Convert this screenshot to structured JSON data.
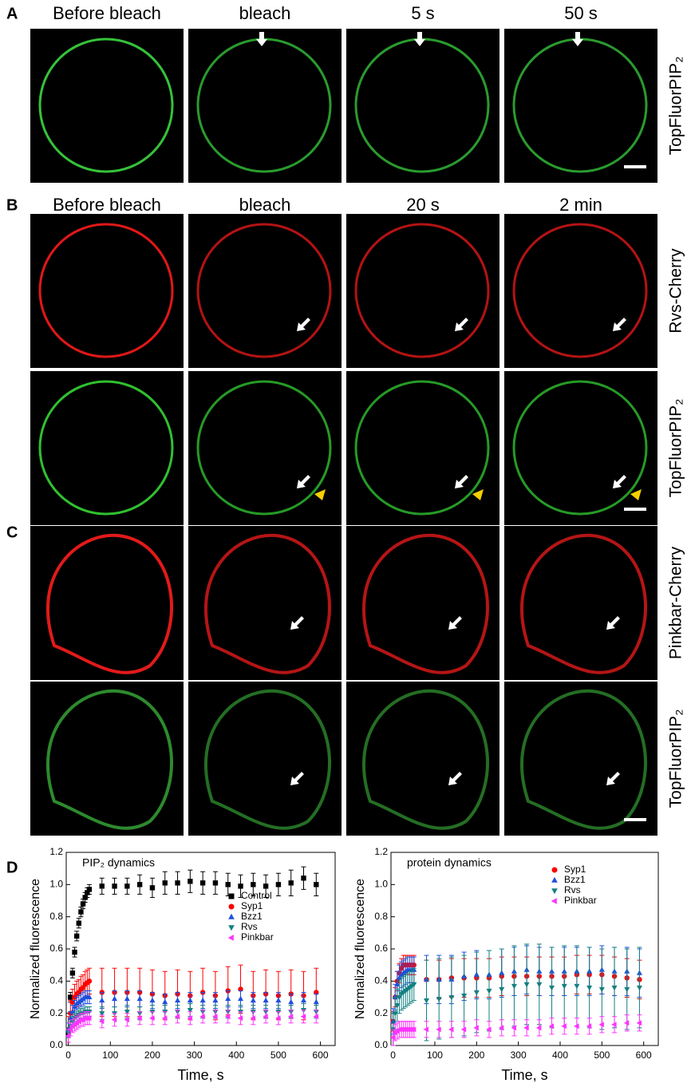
{
  "panels": [
    {
      "label": "A",
      "columns": [
        "Before bleach",
        "bleach",
        "5 s",
        "50 s"
      ],
      "rows": [
        "TopFluorPIP₂"
      ]
    },
    {
      "label": "B",
      "columns": [
        "Before bleach",
        "bleach",
        "20 s",
        "2 min"
      ],
      "rows": [
        "Rvs-Cherry",
        "TopFluorPIP₂"
      ]
    },
    {
      "label": "C",
      "rows": [
        "Pinkbar-Cherry",
        "TopFluorPIP₂"
      ]
    },
    {
      "label": "D"
    }
  ],
  "chart_data": [
    {
      "type": "scatter",
      "title": "PIP₂ dynamics",
      "x_label": "Time, s",
      "y_label": "Normalized fluorescence",
      "xlim": [
        -5,
        635
      ],
      "ylim": [
        0,
        1.2
      ],
      "xticks": [
        0,
        100,
        200,
        300,
        400,
        500,
        600
      ],
      "yticks": [
        {
          "value": 0,
          "label": "0.0"
        },
        0.2,
        0.4,
        0.6,
        0.8,
        {
          "value": 1,
          "label": "1.0"
        },
        1.2
      ],
      "legend": "upper right",
      "x": [
        0,
        5,
        10,
        15,
        20,
        25,
        30,
        35,
        40,
        45,
        50,
        80,
        110,
        140,
        170,
        200,
        230,
        260,
        290,
        320,
        350,
        380,
        410,
        440,
        470,
        500,
        530,
        560,
        590
      ],
      "series": [
        {
          "name": "Control",
          "color": "#000000",
          "marker": "square",
          "values": [
            0.08,
            0.3,
            0.45,
            0.58,
            0.68,
            0.76,
            0.83,
            0.88,
            0.92,
            0.95,
            0.97,
            0.99,
            0.99,
            0.99,
            1.0,
            0.98,
            1.01,
            1.01,
            1.02,
            1.01,
            1.01,
            1.0,
            0.99,
            1.0,
            0.99,
            1.0,
            1.01,
            1.04,
            1.0
          ],
          "errors": [
            0.03,
            0.03,
            0.03,
            0.03,
            0.03,
            0.03,
            0.03,
            0.03,
            0.03,
            0.03,
            0.03,
            0.05,
            0.05,
            0.05,
            0.06,
            0.06,
            0.07,
            0.07,
            0.07,
            0.07,
            0.07,
            0.07,
            0.07,
            0.07,
            0.07,
            0.07,
            0.08,
            0.07,
            0.07
          ]
        },
        {
          "name": "Syp1",
          "color": "#ff0000",
          "marker": "circle",
          "values": [
            0.1,
            0.2,
            0.27,
            0.3,
            0.32,
            0.33,
            0.35,
            0.36,
            0.38,
            0.39,
            0.4,
            0.33,
            0.33,
            0.33,
            0.33,
            0.32,
            0.31,
            0.32,
            0.31,
            0.33,
            0.31,
            0.34,
            0.35,
            0.31,
            0.32,
            0.31,
            0.32,
            0.31,
            0.33
          ],
          "errors": [
            0.08,
            0.08,
            0.08,
            0.08,
            0.08,
            0.08,
            0.08,
            0.08,
            0.08,
            0.08,
            0.08,
            0.15,
            0.15,
            0.15,
            0.15,
            0.15,
            0.15,
            0.15,
            0.15,
            0.15,
            0.15,
            0.15,
            0.15,
            0.15,
            0.15,
            0.15,
            0.15,
            0.15,
            0.15
          ]
        },
        {
          "name": "Bzz1",
          "color": "#1e4fe0",
          "marker": "triangle-up",
          "values": [
            0.1,
            0.17,
            0.21,
            0.24,
            0.26,
            0.27,
            0.28,
            0.29,
            0.3,
            0.3,
            0.3,
            0.28,
            0.29,
            0.29,
            0.29,
            0.28,
            0.27,
            0.28,
            0.28,
            0.28,
            0.28,
            0.29,
            0.29,
            0.28,
            0.28,
            0.28,
            0.27,
            0.28,
            0.27
          ],
          "errors": [
            0.04,
            0.04,
            0.04,
            0.04,
            0.04,
            0.04,
            0.04,
            0.04,
            0.04,
            0.04,
            0.04,
            0.05,
            0.05,
            0.05,
            0.05,
            0.05,
            0.05,
            0.05,
            0.05,
            0.05,
            0.05,
            0.05,
            0.05,
            0.05,
            0.05,
            0.05,
            0.05,
            0.05,
            0.05
          ]
        },
        {
          "name": "Rvs",
          "color": "#138080",
          "marker": "triangle-down",
          "values": [
            0.08,
            0.12,
            0.15,
            0.17,
            0.18,
            0.19,
            0.2,
            0.2,
            0.21,
            0.21,
            0.21,
            0.2,
            0.2,
            0.21,
            0.2,
            0.21,
            0.21,
            0.21,
            0.22,
            0.21,
            0.21,
            0.21,
            0.21,
            0.21,
            0.21,
            0.21,
            0.21,
            0.22,
            0.21
          ],
          "errors": [
            0.03,
            0.03,
            0.03,
            0.03,
            0.03,
            0.03,
            0.03,
            0.03,
            0.03,
            0.03,
            0.03,
            0.04,
            0.04,
            0.04,
            0.04,
            0.04,
            0.04,
            0.04,
            0.04,
            0.04,
            0.04,
            0.04,
            0.04,
            0.04,
            0.04,
            0.04,
            0.04,
            0.04,
            0.04
          ]
        },
        {
          "name": "Pinkbar",
          "color": "#ff33ff",
          "marker": "triangle-left",
          "values": [
            0.06,
            0.1,
            0.12,
            0.13,
            0.14,
            0.15,
            0.16,
            0.16,
            0.17,
            0.17,
            0.17,
            0.15,
            0.16,
            0.16,
            0.17,
            0.17,
            0.17,
            0.18,
            0.17,
            0.18,
            0.18,
            0.18,
            0.17,
            0.17,
            0.18,
            0.17,
            0.18,
            0.18,
            0.18
          ],
          "errors": [
            0.04,
            0.04,
            0.04,
            0.04,
            0.04,
            0.04,
            0.04,
            0.04,
            0.04,
            0.04,
            0.04,
            0.04,
            0.04,
            0.04,
            0.04,
            0.04,
            0.04,
            0.04,
            0.04,
            0.04,
            0.04,
            0.04,
            0.04,
            0.04,
            0.04,
            0.04,
            0.04,
            0.04,
            0.04
          ]
        }
      ]
    },
    {
      "type": "scatter",
      "title": "protein dynamics",
      "x_label": "Time, s",
      "y_label": "Normalized fluorescence",
      "xlim": [
        -5,
        635
      ],
      "ylim": [
        0,
        1.2
      ],
      "xticks": [
        0,
        100,
        200,
        300,
        400,
        500,
        600
      ],
      "yticks": [
        {
          "value": 0,
          "label": "0.0"
        },
        0.2,
        0.4,
        0.6,
        0.8,
        {
          "value": 1,
          "label": "1.0"
        },
        1.2
      ],
      "legend": "upper right",
      "x": [
        0,
        5,
        10,
        15,
        20,
        25,
        30,
        35,
        40,
        45,
        50,
        80,
        110,
        140,
        170,
        200,
        230,
        260,
        290,
        320,
        350,
        380,
        410,
        440,
        470,
        500,
        530,
        560,
        590
      ],
      "series": [
        {
          "name": "Syp1",
          "color": "#ff0000",
          "marker": "circle",
          "values": [
            0.15,
            0.3,
            0.4,
            0.45,
            0.48,
            0.5,
            0.5,
            0.5,
            0.5,
            0.5,
            0.5,
            0.41,
            0.41,
            0.42,
            0.42,
            0.42,
            0.42,
            0.43,
            0.43,
            0.43,
            0.43,
            0.43,
            0.43,
            0.44,
            0.44,
            0.44,
            0.43,
            0.42,
            0.41
          ],
          "errors": [
            0.06,
            0.06,
            0.06,
            0.06,
            0.06,
            0.06,
            0.06,
            0.06,
            0.06,
            0.06,
            0.06,
            0.12,
            0.12,
            0.12,
            0.12,
            0.12,
            0.12,
            0.12,
            0.12,
            0.12,
            0.12,
            0.12,
            0.12,
            0.12,
            0.12,
            0.12,
            0.12,
            0.12,
            0.12
          ]
        },
        {
          "name": "Bzz1",
          "color": "#1e4fe0",
          "marker": "triangle-up",
          "values": [
            0.15,
            0.3,
            0.38,
            0.42,
            0.44,
            0.45,
            0.46,
            0.47,
            0.47,
            0.47,
            0.47,
            0.41,
            0.41,
            0.41,
            0.43,
            0.44,
            0.44,
            0.45,
            0.46,
            0.47,
            0.46,
            0.46,
            0.46,
            0.46,
            0.46,
            0.47,
            0.46,
            0.46,
            0.45
          ],
          "errors": [
            0.08,
            0.08,
            0.08,
            0.08,
            0.08,
            0.08,
            0.08,
            0.08,
            0.08,
            0.08,
            0.08,
            0.15,
            0.15,
            0.15,
            0.15,
            0.15,
            0.15,
            0.15,
            0.15,
            0.15,
            0.15,
            0.15,
            0.15,
            0.15,
            0.15,
            0.15,
            0.15,
            0.15,
            0.15
          ]
        },
        {
          "name": "Rvs",
          "color": "#138080",
          "marker": "triangle-down",
          "values": [
            0.1,
            0.2,
            0.25,
            0.3,
            0.32,
            0.33,
            0.34,
            0.35,
            0.36,
            0.37,
            0.38,
            0.28,
            0.29,
            0.3,
            0.31,
            0.33,
            0.34,
            0.35,
            0.37,
            0.38,
            0.38,
            0.36,
            0.37,
            0.37,
            0.36,
            0.35,
            0.36,
            0.35,
            0.36
          ],
          "errors": [
            0.1,
            0.1,
            0.1,
            0.1,
            0.1,
            0.1,
            0.1,
            0.1,
            0.1,
            0.1,
            0.1,
            0.25,
            0.25,
            0.25,
            0.25,
            0.25,
            0.25,
            0.25,
            0.25,
            0.25,
            0.25,
            0.25,
            0.25,
            0.25,
            0.25,
            0.25,
            0.25,
            0.25,
            0.25
          ]
        },
        {
          "name": "Pinkbar",
          "color": "#ff33ff",
          "marker": "triangle-left",
          "values": [
            0.05,
            0.08,
            0.09,
            0.1,
            0.1,
            0.1,
            0.1,
            0.1,
            0.1,
            0.1,
            0.1,
            0.1,
            0.1,
            0.1,
            0.1,
            0.11,
            0.1,
            0.11,
            0.11,
            0.11,
            0.11,
            0.12,
            0.12,
            0.12,
            0.12,
            0.13,
            0.13,
            0.14,
            0.14
          ],
          "errors": [
            0.05,
            0.05,
            0.05,
            0.05,
            0.05,
            0.05,
            0.05,
            0.05,
            0.05,
            0.05,
            0.05,
            0.05,
            0.05,
            0.05,
            0.05,
            0.05,
            0.05,
            0.05,
            0.05,
            0.05,
            0.05,
            0.05,
            0.05,
            0.05,
            0.05,
            0.05,
            0.05,
            0.05,
            0.05
          ]
        }
      ]
    }
  ]
}
